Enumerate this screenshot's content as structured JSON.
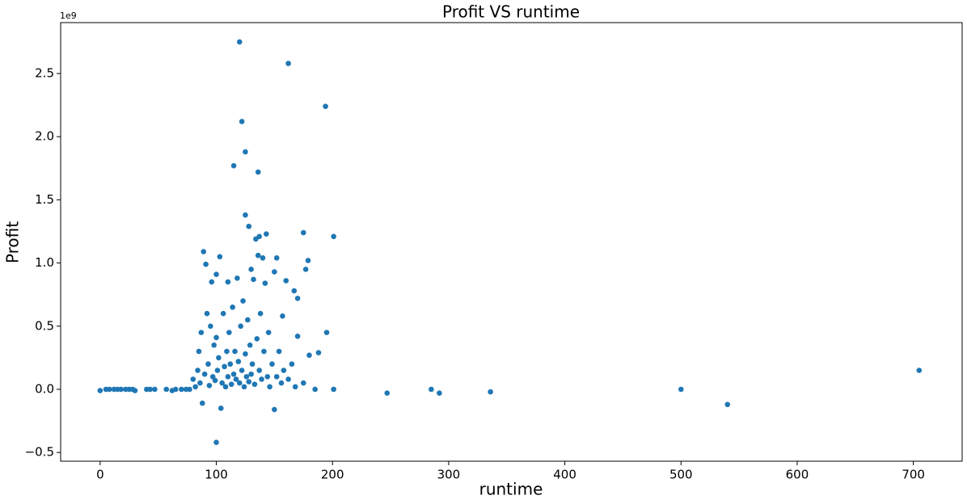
{
  "chart_data": {
    "type": "scatter",
    "title": "Profit VS runtime",
    "x_label": "runtime",
    "y_label": "Profit",
    "y_offset_label": "1e9",
    "color": "#1f77b4",
    "x": [
      0,
      5,
      8,
      12,
      15,
      18,
      22,
      25,
      28,
      30,
      40,
      43,
      47,
      57,
      62,
      65,
      70,
      74,
      77,
      80,
      82,
      84,
      85,
      86,
      87,
      88,
      89,
      90,
      91,
      92,
      93,
      94,
      95,
      96,
      97,
      98,
      99,
      100,
      100,
      100,
      101,
      102,
      103,
      104,
      105,
      106,
      107,
      108,
      109,
      110,
      110,
      111,
      112,
      113,
      114,
      115,
      115,
      116,
      117,
      118,
      119,
      120,
      120,
      121,
      122,
      122,
      123,
      124,
      125,
      125,
      125,
      126,
      127,
      128,
      128,
      129,
      130,
      130,
      131,
      132,
      133,
      134,
      135,
      136,
      136,
      137,
      137,
      138,
      139,
      140,
      141,
      142,
      143,
      144,
      145,
      146,
      148,
      150,
      150,
      152,
      152,
      154,
      156,
      157,
      158,
      160,
      162,
      162,
      165,
      167,
      168,
      170,
      170,
      175,
      175,
      177,
      179,
      180,
      185,
      188,
      194,
      195,
      201,
      201,
      247,
      285,
      292,
      336,
      500,
      540,
      705
    ],
    "values": [
      -0.01,
      0,
      0,
      0,
      0,
      0,
      0,
      0,
      0,
      -0.01,
      0,
      0,
      0,
      0,
      -0.01,
      0,
      0,
      0,
      0,
      0.08,
      0.02,
      0.15,
      0.3,
      0.05,
      0.45,
      -0.11,
      1.09,
      0.12,
      0.99,
      0.6,
      0.2,
      0.03,
      0.5,
      0.85,
      0.1,
      0.35,
      0.07,
      0.91,
      0.41,
      -0.42,
      0.15,
      0.25,
      1.05,
      -0.15,
      0.05,
      0.6,
      0.18,
      0.02,
      0.3,
      0.85,
      0.1,
      0.45,
      0.2,
      0.04,
      0.65,
      1.77,
      0.12,
      0.3,
      0.08,
      0.88,
      0.22,
      2.75,
      0.05,
      0.5,
      2.12,
      0.15,
      0.7,
      0.02,
      1.88,
      1.38,
      0.28,
      0.1,
      0.55,
      1.29,
      0.06,
      0.35,
      0.95,
      0.12,
      0.2,
      0.87,
      0.04,
      1.19,
      0.4,
      1.72,
      1.06,
      1.21,
      0.15,
      0.6,
      0.08,
      1.04,
      0.3,
      0.84,
      1.23,
      0.1,
      0.45,
      0.02,
      0.2,
      0.93,
      -0.16,
      1.04,
      0.1,
      0.3,
      0.05,
      0.58,
      0.15,
      0.86,
      2.58,
      0.08,
      0.2,
      0.78,
      0.02,
      0.72,
      0.42,
      1.24,
      0.05,
      0.95,
      1.02,
      0.27,
      0,
      0.29,
      2.24,
      0.45,
      1.21,
      0,
      -0.03,
      0,
      -0.03,
      -0.02,
      0,
      -0.12,
      0.15
    ],
    "xlim": [
      -34,
      742
    ],
    "xticks": [
      0,
      100,
      200,
      300,
      400,
      500,
      600,
      700
    ],
    "ylim": [
      -0.569,
      2.903
    ],
    "yticks": [
      {
        "value": -0.5,
        "label": "−0.5"
      },
      {
        "value": 0,
        "label": "0.0"
      },
      0.5,
      {
        "value": 1,
        "label": "1.0"
      },
      1.5,
      {
        "value": 2,
        "label": "2.0"
      },
      2.5
    ]
  }
}
